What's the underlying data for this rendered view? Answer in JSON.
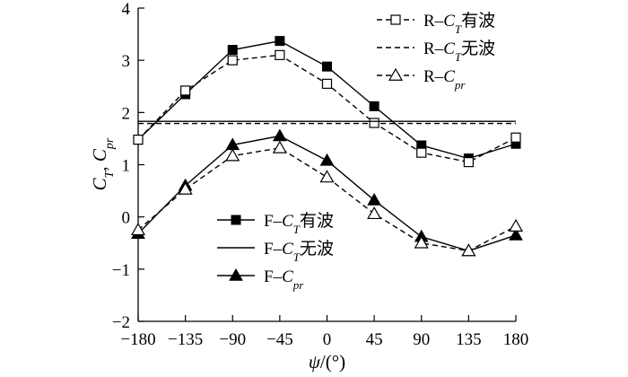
{
  "chart_data": {
    "type": "line",
    "xlabel": "ψ/(°)",
    "ylabel": "C_T, C_pr",
    "xlim": [
      -180,
      180
    ],
    "ylim": [
      -2,
      4
    ],
    "x_ticks": [
      -180,
      -135,
      -90,
      -45,
      0,
      45,
      90,
      135,
      180
    ],
    "x_tick_labels": [
      "−180",
      "−135",
      "−90",
      "−45",
      "0",
      "45",
      "90",
      "135",
      "180"
    ],
    "y_ticks": [
      -2,
      -1,
      0,
      1,
      2,
      3,
      4
    ],
    "y_tick_labels": [
      "−2",
      "−1",
      "0",
      "1",
      "2",
      "3",
      "4"
    ],
    "grid": false,
    "x": [
      -180,
      -135,
      -90,
      -45,
      0,
      45,
      90,
      135,
      180
    ],
    "series": [
      {
        "name": "R–C_T有波",
        "group": "R",
        "style": "solid",
        "marker": "square-filled",
        "values": [
          1.48,
          2.35,
          3.2,
          3.37,
          2.88,
          2.12,
          1.37,
          1.12,
          1.4
        ]
      },
      {
        "name": "R–C_T无波",
        "group": "R",
        "style": "dashed",
        "marker": "none",
        "values": [
          1.79,
          1.79,
          1.79,
          1.79,
          1.79,
          1.79,
          1.79,
          1.79,
          1.79
        ]
      },
      {
        "name": "R–C_pr",
        "group": "R",
        "style": "dashed",
        "marker": "square-open",
        "values": [
          1.48,
          2.42,
          3.0,
          3.1,
          2.55,
          1.8,
          1.23,
          1.05,
          1.52
        ]
      },
      {
        "name": "F–C_T有波",
        "group": "F",
        "style": "solid",
        "marker": "triangle-filled",
        "values": [
          -0.32,
          0.6,
          1.38,
          1.55,
          1.08,
          0.32,
          -0.38,
          -0.65,
          -0.35
        ]
      },
      {
        "name": "F–C_T无波",
        "group": "F",
        "style": "solid",
        "marker": "none",
        "values": [
          1.83,
          1.83,
          1.83,
          1.83,
          1.83,
          1.83,
          1.83,
          1.83,
          1.83
        ]
      },
      {
        "name": "F–C_pr",
        "group": "F",
        "style": "dashed",
        "marker": "triangle-open",
        "values": [
          -0.25,
          0.53,
          1.17,
          1.32,
          0.76,
          0.06,
          -0.5,
          -0.65,
          -0.18
        ]
      }
    ],
    "legends": [
      {
        "placement": "top-right",
        "entries": [
          {
            "prefix": "R–",
            "sym": "C",
            "sub": "T",
            "suffix": "有波",
            "line": "dashed",
            "marker": "square-open"
          },
          {
            "prefix": "R–",
            "sym": "C",
            "sub": "T",
            "suffix": "无波",
            "line": "dashed",
            "marker": "none"
          },
          {
            "prefix": "R–",
            "sym": "C",
            "sub": "pr",
            "suffix": "",
            "line": "dashed",
            "marker": "triangle-open"
          }
        ]
      },
      {
        "placement": "bottom-center",
        "entries": [
          {
            "prefix": "F–",
            "sym": "C",
            "sub": "T",
            "suffix": "有波",
            "line": "solid",
            "marker": "square-filled"
          },
          {
            "prefix": "F–",
            "sym": "C",
            "sub": "T",
            "suffix": "无波",
            "line": "solid",
            "marker": "none"
          },
          {
            "prefix": "F–",
            "sym": "C",
            "sub": "pr",
            "suffix": "",
            "line": "solid",
            "marker": "triangle-filled"
          }
        ]
      }
    ]
  }
}
